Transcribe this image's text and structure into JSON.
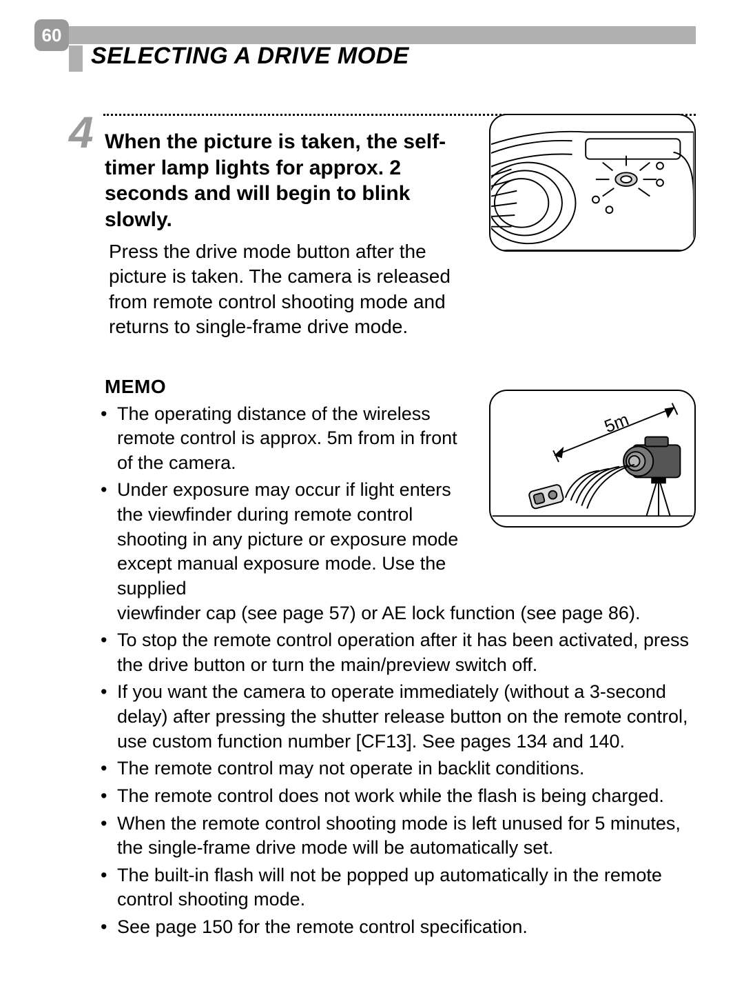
{
  "page_number": "60",
  "title": "SELECTING A DRIVE MODE",
  "step": {
    "number": "4",
    "heading": "When the picture is taken, the self-timer lamp lights for approx. 2 seconds and will begin to blink slowly.",
    "body": "Press the drive mode button after the picture is taken. The camera is released from remote control shooting mode and returns to single-frame drive mode."
  },
  "memo": {
    "title": "MEMO",
    "items": [
      "The operating distance of the wireless remote control is approx. 5m from in front of the camera.",
      "Under exposure may occur if light enters the viewfinder during remote control shooting in any picture or exposure mode except manual exposure mode. Use the supplied viewfinder cap (see page 57) or AE lock function (see page 86).",
      "To stop the remote control operation after it has been activated, press the drive button or turn the main/preview switch off.",
      "If you want the camera to operate immediately (without a 3-second delay) after pressing the shutter release button on the remote control, use custom function number [CF13]. See pages 134 and 140.",
      "The remote control may not operate in backlit conditions.",
      "The remote control does not work while the flash is being charged.",
      "When the remote control shooting mode is left unused for 5 minutes, the single-frame drive mode will be automatically set.",
      "The built-in flash will not be popped up automatically in the remote control shooting mode.",
      "See page 150 for the remote control specification."
    ]
  },
  "figure2_label": "5m",
  "colors": {
    "gray_bar": "#b0b0b0",
    "gray_num": "#9a9a9a",
    "text": "#000000",
    "bg": "#ffffff"
  },
  "fonts": {
    "title_pt": 34,
    "step_num_pt": 64,
    "heading_pt": 30,
    "body_pt": 28,
    "memo_pt": 27
  }
}
